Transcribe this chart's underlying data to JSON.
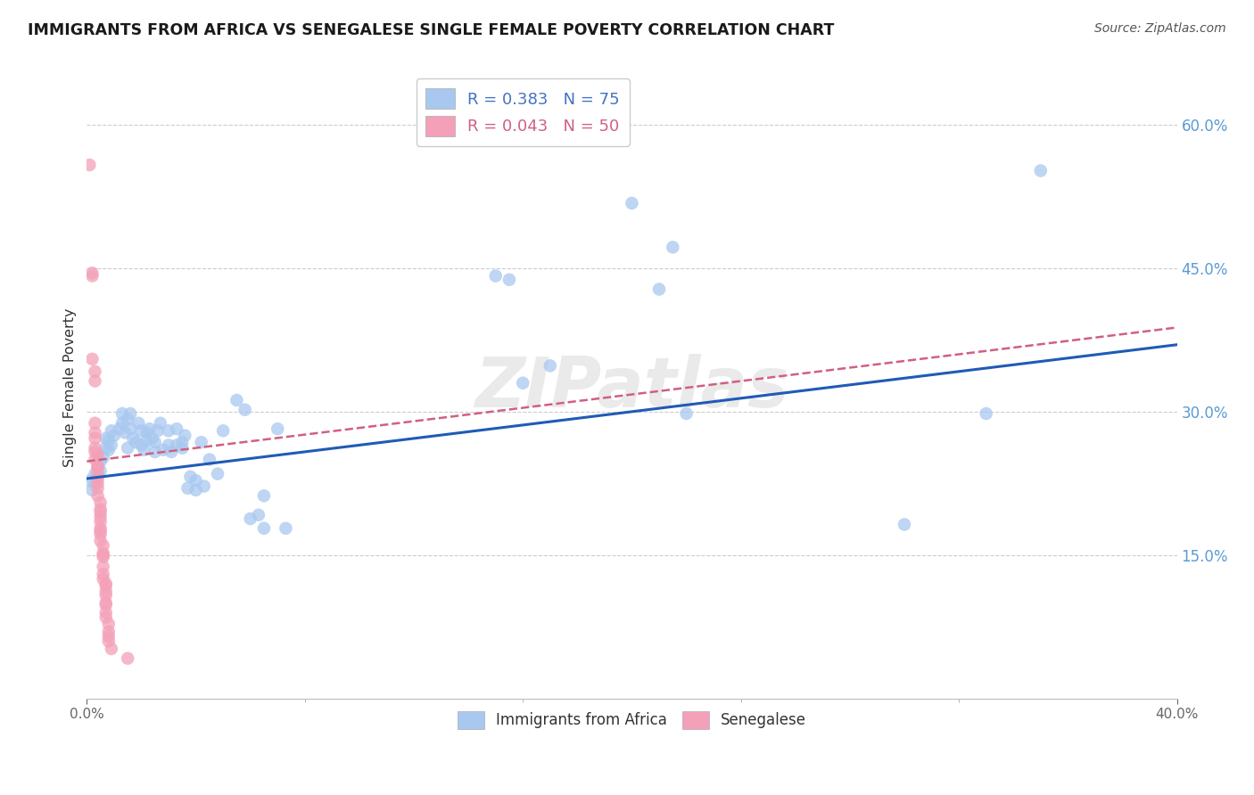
{
  "title": "IMMIGRANTS FROM AFRICA VS SENEGALESE SINGLE FEMALE POVERTY CORRELATION CHART",
  "source": "Source: ZipAtlas.com",
  "ylabel": "Single Female Poverty",
  "x_min": 0.0,
  "x_max": 0.4,
  "y_min": 0.0,
  "y_max": 0.65,
  "y_ticks": [
    0.15,
    0.3,
    0.45,
    0.6
  ],
  "x_ticks": [
    0.0,
    0.4
  ],
  "legend1_r": "0.383",
  "legend1_n": "75",
  "legend2_r": "0.043",
  "legend2_n": "50",
  "blue_color": "#A8C8F0",
  "pink_color": "#F4A0B8",
  "line_blue": "#1F5BB5",
  "line_pink": "#D06080",
  "blue_scatter": [
    [
      0.001,
      0.228
    ],
    [
      0.002,
      0.218
    ],
    [
      0.003,
      0.225
    ],
    [
      0.003,
      0.235
    ],
    [
      0.004,
      0.232
    ],
    [
      0.004,
      0.242
    ],
    [
      0.005,
      0.238
    ],
    [
      0.005,
      0.248
    ],
    [
      0.006,
      0.252
    ],
    [
      0.007,
      0.262
    ],
    [
      0.007,
      0.272
    ],
    [
      0.008,
      0.26
    ],
    [
      0.008,
      0.27
    ],
    [
      0.009,
      0.265
    ],
    [
      0.009,
      0.28
    ],
    [
      0.01,
      0.275
    ],
    [
      0.012,
      0.282
    ],
    [
      0.013,
      0.288
    ],
    [
      0.013,
      0.298
    ],
    [
      0.014,
      0.278
    ],
    [
      0.015,
      0.262
    ],
    [
      0.015,
      0.292
    ],
    [
      0.016,
      0.282
    ],
    [
      0.016,
      0.298
    ],
    [
      0.017,
      0.272
    ],
    [
      0.018,
      0.268
    ],
    [
      0.019,
      0.288
    ],
    [
      0.02,
      0.265
    ],
    [
      0.02,
      0.28
    ],
    [
      0.021,
      0.26
    ],
    [
      0.022,
      0.27
    ],
    [
      0.022,
      0.278
    ],
    [
      0.023,
      0.282
    ],
    [
      0.024,
      0.272
    ],
    [
      0.025,
      0.258
    ],
    [
      0.025,
      0.268
    ],
    [
      0.026,
      0.28
    ],
    [
      0.027,
      0.288
    ],
    [
      0.028,
      0.26
    ],
    [
      0.03,
      0.265
    ],
    [
      0.03,
      0.28
    ],
    [
      0.031,
      0.258
    ],
    [
      0.033,
      0.282
    ],
    [
      0.033,
      0.265
    ],
    [
      0.035,
      0.262
    ],
    [
      0.035,
      0.268
    ],
    [
      0.036,
      0.275
    ],
    [
      0.037,
      0.22
    ],
    [
      0.038,
      0.232
    ],
    [
      0.04,
      0.218
    ],
    [
      0.04,
      0.228
    ],
    [
      0.042,
      0.268
    ],
    [
      0.043,
      0.222
    ],
    [
      0.045,
      0.25
    ],
    [
      0.048,
      0.235
    ],
    [
      0.05,
      0.28
    ],
    [
      0.055,
      0.312
    ],
    [
      0.058,
      0.302
    ],
    [
      0.06,
      0.188
    ],
    [
      0.063,
      0.192
    ],
    [
      0.065,
      0.178
    ],
    [
      0.065,
      0.212
    ],
    [
      0.07,
      0.282
    ],
    [
      0.073,
      0.178
    ],
    [
      0.15,
      0.442
    ],
    [
      0.155,
      0.438
    ],
    [
      0.16,
      0.33
    ],
    [
      0.17,
      0.348
    ],
    [
      0.2,
      0.518
    ],
    [
      0.21,
      0.428
    ],
    [
      0.215,
      0.472
    ],
    [
      0.22,
      0.298
    ],
    [
      0.3,
      0.182
    ],
    [
      0.33,
      0.298
    ],
    [
      0.35,
      0.552
    ]
  ],
  "pink_scatter": [
    [
      0.001,
      0.558
    ],
    [
      0.002,
      0.442
    ],
    [
      0.002,
      0.355
    ],
    [
      0.002,
      0.445
    ],
    [
      0.003,
      0.332
    ],
    [
      0.003,
      0.342
    ],
    [
      0.003,
      0.278
    ],
    [
      0.003,
      0.288
    ],
    [
      0.003,
      0.262
    ],
    [
      0.003,
      0.272
    ],
    [
      0.003,
      0.258
    ],
    [
      0.003,
      0.25
    ],
    [
      0.004,
      0.255
    ],
    [
      0.004,
      0.242
    ],
    [
      0.004,
      0.23
    ],
    [
      0.004,
      0.235
    ],
    [
      0.004,
      0.242
    ],
    [
      0.004,
      0.225
    ],
    [
      0.004,
      0.22
    ],
    [
      0.004,
      0.212
    ],
    [
      0.005,
      0.198
    ],
    [
      0.005,
      0.205
    ],
    [
      0.005,
      0.19
    ],
    [
      0.005,
      0.195
    ],
    [
      0.005,
      0.185
    ],
    [
      0.005,
      0.178
    ],
    [
      0.005,
      0.172
    ],
    [
      0.005,
      0.175
    ],
    [
      0.005,
      0.165
    ],
    [
      0.006,
      0.16
    ],
    [
      0.006,
      0.152
    ],
    [
      0.006,
      0.148
    ],
    [
      0.006,
      0.15
    ],
    [
      0.006,
      0.138
    ],
    [
      0.006,
      0.13
    ],
    [
      0.006,
      0.125
    ],
    [
      0.007,
      0.12
    ],
    [
      0.007,
      0.112
    ],
    [
      0.007,
      0.118
    ],
    [
      0.007,
      0.108
    ],
    [
      0.007,
      0.1
    ],
    [
      0.007,
      0.09
    ],
    [
      0.007,
      0.098
    ],
    [
      0.007,
      0.085
    ],
    [
      0.008,
      0.078
    ],
    [
      0.008,
      0.07
    ],
    [
      0.008,
      0.065
    ],
    [
      0.008,
      0.06
    ],
    [
      0.009,
      0.052
    ],
    [
      0.015,
      0.042
    ]
  ],
  "blue_line_x": [
    0.0,
    0.4
  ],
  "blue_line_y": [
    0.23,
    0.37
  ],
  "pink_line_x": [
    0.0,
    0.4
  ],
  "pink_line_y": [
    0.248,
    0.388
  ],
  "watermark": "ZIPatlas",
  "background_color": "#FFFFFF"
}
